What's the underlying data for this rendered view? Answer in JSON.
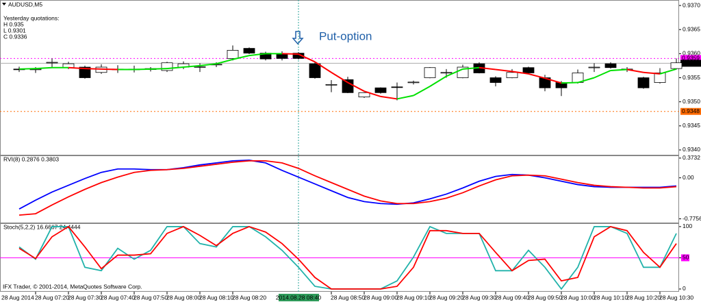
{
  "chart_data": [
    {
      "type": "candlestick",
      "title": "AUDUSD,M5",
      "date_label": "28 Aug 2014",
      "crosshair_label": "2014.08.28 08:40",
      "annotation": "Put-option",
      "quotes": [
        "Yesterday quotations:",
        "H 0.935",
        "L 0.9301",
        "C 0.9336"
      ],
      "categories": [
        null,
        "28 Aug 07:20",
        null,
        "28 Aug 07:30",
        null,
        "28 Aug 07:40",
        null,
        "28 Aug 07:50",
        null,
        "28 Aug 08:00",
        null,
        "28 Aug 08:10",
        null,
        "28 Aug 08:20",
        null,
        null,
        null,
        null,
        null,
        "28 Aug 08:50",
        null,
        "28 Aug 09:00",
        null,
        "28 Aug 09:10",
        null,
        "28 Aug 09:20",
        null,
        "28 Aug 09:30",
        null,
        "28 Aug 09:40",
        null,
        "28 Aug 09:50",
        null,
        "28 Aug 10:00",
        null,
        "28 Aug 10:10",
        null,
        "28 Aug 10:20",
        null,
        "28 Aug 10:30",
        null
      ],
      "open": [
        0.93568,
        0.93567,
        0.93581,
        0.93571,
        0.93572,
        0.93561,
        0.93567,
        0.93568,
        0.93567,
        0.93565,
        0.93572,
        0.93572,
        0.93577,
        0.9359,
        0.93611,
        0.93601,
        0.936,
        0.93601,
        0.93579,
        0.93535,
        0.93546,
        0.9351,
        0.93529,
        0.93531,
        0.9354,
        0.9355,
        0.9356,
        0.9355,
        0.93579,
        0.9355,
        0.9355,
        0.93571,
        0.9355,
        0.9354,
        0.9354,
        0.93571,
        0.93579,
        0.93567,
        0.9355,
        0.9354,
        0.93569
      ],
      "high": [
        0.93573,
        0.93572,
        0.9359,
        0.93583,
        0.93575,
        0.93578,
        0.93576,
        0.93575,
        0.93572,
        0.93583,
        0.93584,
        0.9358,
        0.93582,
        0.93617,
        0.93613,
        0.93604,
        0.93605,
        0.93603,
        0.93582,
        0.93545,
        0.93552,
        0.9352,
        0.9353,
        0.9354,
        0.93544,
        0.93572,
        0.93568,
        0.93577,
        0.93582,
        0.93553,
        0.93568,
        0.93573,
        0.93556,
        0.93543,
        0.93567,
        0.9358,
        0.93582,
        0.93572,
        0.93552,
        0.9357,
        0.9359
      ],
      "low": [
        0.93562,
        0.9356,
        0.93572,
        0.93568,
        0.93548,
        0.93558,
        0.9356,
        0.93561,
        0.93563,
        0.93562,
        0.93568,
        0.93562,
        0.93572,
        0.93586,
        0.93599,
        0.93586,
        0.93586,
        0.93588,
        0.93548,
        0.9352,
        0.93518,
        0.93508,
        0.93517,
        0.93503,
        0.93536,
        0.93549,
        0.9355,
        0.93549,
        0.93559,
        0.93532,
        0.93549,
        0.93559,
        0.93522,
        0.93512,
        0.93538,
        0.93562,
        0.93569,
        0.93562,
        0.93527,
        0.93538,
        0.93567
      ],
      "close": [
        0.93567,
        0.93568,
        0.93582,
        0.93579,
        0.9355,
        0.93572,
        0.93568,
        0.93567,
        0.93569,
        0.93581,
        0.93579,
        0.93573,
        0.93578,
        0.93607,
        0.93601,
        0.93589,
        0.9359,
        0.9359,
        0.9355,
        0.93536,
        0.93519,
        0.93519,
        0.93519,
        0.9353,
        0.93541,
        0.93571,
        0.93561,
        0.93572,
        0.9356,
        0.9354,
        0.93561,
        0.9356,
        0.93529,
        0.93529,
        0.9356,
        0.93572,
        0.93571,
        0.93568,
        0.93529,
        0.9356,
        0.93581
      ],
      "ma": {
        "up_color": "#00e000",
        "down_color": "#ff0000",
        "values": [
          0.93568,
          0.93569,
          0.93571,
          0.93571,
          0.93569,
          0.93568,
          0.93567,
          0.93567,
          0.93568,
          0.93569,
          0.93572,
          0.93575,
          0.93579,
          0.93588,
          0.93596,
          0.936,
          0.936,
          0.93599,
          0.93583,
          0.93561,
          0.9354,
          0.93522,
          0.93511,
          0.93506,
          0.93513,
          0.93532,
          0.93553,
          0.93568,
          0.93571,
          0.93567,
          0.93563,
          0.93558,
          0.93549,
          0.93539,
          0.9354,
          0.9355,
          0.93565,
          0.93567,
          0.93561,
          0.93558,
          0.93568
        ]
      },
      "levels": [
        {
          "value": 0.9359,
          "color": "#ff00ff",
          "dashed": true
        },
        {
          "value": 0.9358,
          "color": "#000000",
          "dashed": false
        },
        {
          "value": 0.9348,
          "color": "#ff6a00",
          "dashed": true
        }
      ],
      "ylim": [
        0.9339,
        0.9371
      ],
      "yticks": [
        {
          "value": 0.937,
          "label": "0.9370"
        },
        0.9365,
        {
          "value": 0.936,
          "label": "0.9360"
        },
        0.9355,
        {
          "value": 0.935,
          "label": "0.9350"
        },
        0.9345,
        {
          "value": 0.934,
          "label": "0.9340"
        }
      ]
    },
    {
      "type": "line",
      "title": "RVI(8) 0.2876 0.3803",
      "ylim": [
        -0.846,
        0.41
      ],
      "yticks": [
        0.3732,
        {
          "value": 0,
          "label": "0.00"
        },
        -0.7756
      ],
      "series": [
        {
          "color": "#0000ff",
          "values": [
            -0.59,
            -0.423,
            -0.269,
            -0.141,
            -0.013,
            0.103,
            0.167,
            0.167,
            0.154,
            0.154,
            0.192,
            0.244,
            0.282,
            0.321,
            0.333,
            0.282,
            0.141,
            0.013,
            -0.115,
            -0.244,
            -0.372,
            -0.449,
            -0.487,
            -0.5,
            -0.474,
            -0.397,
            -0.308,
            -0.192,
            -0.064,
            0.026,
            0.064,
            0.051,
            0,
            -0.064,
            -0.128,
            -0.167,
            -0.179,
            -0.179,
            -0.179,
            -0.179,
            -0.154
          ]
        },
        {
          "color": "#ff0000",
          "values": [
            -0.705,
            -0.679,
            -0.513,
            -0.359,
            -0.218,
            -0.09,
            0.013,
            0.103,
            0.141,
            0.154,
            0.179,
            0.218,
            0.256,
            0.295,
            0.321,
            0.321,
            0.282,
            0.179,
            0.038,
            -0.09,
            -0.218,
            -0.346,
            -0.436,
            -0.487,
            -0.487,
            -0.449,
            -0.385,
            -0.282,
            -0.154,
            -0.038,
            0.038,
            0.051,
            0.038,
            -0.026,
            -0.09,
            -0.141,
            -0.167,
            -0.179,
            -0.192,
            -0.192,
            -0.167
          ]
        }
      ]
    },
    {
      "type": "line",
      "title": "Stoch(5,2,2) 16.6667 24.4444",
      "footer": "IFX Trader, © 2001-2014, MetaQuotes Software Corp.",
      "ylim": [
        -3.3,
        104.3
      ],
      "yticks": [
        100,
        50,
        0
      ],
      "levels": [
        {
          "value": 50,
          "color": "#ff00ff",
          "dashed": false
        }
      ],
      "series": [
        {
          "color": "#20b2aa",
          "values": [
            67.4,
            47.8,
            100,
            100,
            34.8,
            29.3,
            65.2,
            47.8,
            62,
            100,
            100,
            72.8,
            67.4,
            100,
            100,
            83.7,
            62,
            34.8,
            4.3,
            0,
            0,
            0,
            0,
            13,
            51.1,
            100,
            89.1,
            89.1,
            89.1,
            29.3,
            29.3,
            62,
            34.8,
            0,
            34.8,
            100,
            100,
            89.1,
            34.8,
            34.8,
            89.1
          ]
        },
        {
          "color": "#ff0000",
          "values": [
            65.2,
            48.9,
            83.7,
            100,
            67.4,
            32.6,
            54.3,
            54.3,
            56.5,
            89.1,
            100,
            85.9,
            69.6,
            89.1,
            100,
            91.3,
            72.8,
            47.8,
            18.5,
            0,
            0,
            0,
            0,
            4.3,
            34.8,
            93.5,
            93.5,
            89.1,
            89.1,
            58.7,
            29.3,
            45.7,
            47.8,
            13,
            18.5,
            83.7,
            100,
            93.5,
            58.7,
            34.8,
            72.8
          ]
        }
      ]
    }
  ]
}
